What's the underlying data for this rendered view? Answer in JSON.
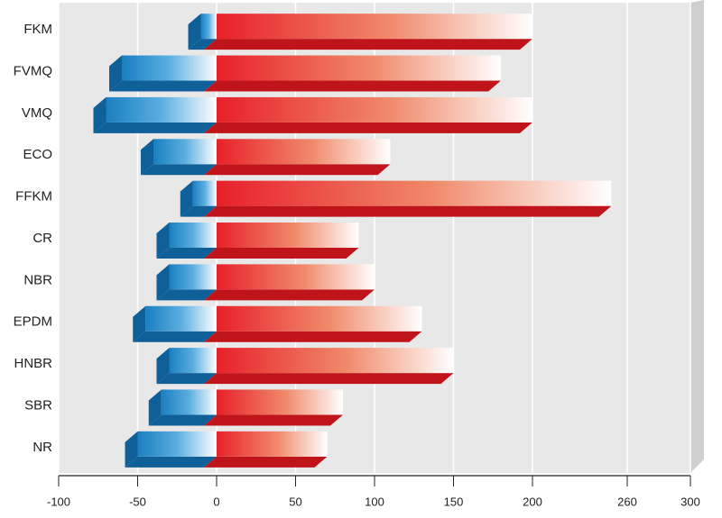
{
  "chart_data": {
    "type": "bar",
    "orientation": "horizontal",
    "categories": [
      "FKM",
      "FVMQ",
      "VMQ",
      "ECO",
      "FFKM",
      "CR",
      "NBR",
      "EPDM",
      "HNBR",
      "SBR",
      "NR"
    ],
    "series": [
      {
        "color": "#1a7fc0",
        "values": [
          -10,
          -60,
          -70,
          -40,
          -15,
          -30,
          -30,
          -45,
          -30,
          -35,
          -50
        ]
      },
      {
        "color": "#e31e24",
        "values": [
          200,
          180,
          200,
          110,
          250,
          90,
          100,
          130,
          150,
          80,
          70
        ]
      }
    ],
    "xlim": [
      -100,
      300
    ],
    "xticks": [
      -100,
      -50,
      0,
      50,
      100,
      150,
      200,
      260,
      300
    ],
    "grid": true
  }
}
